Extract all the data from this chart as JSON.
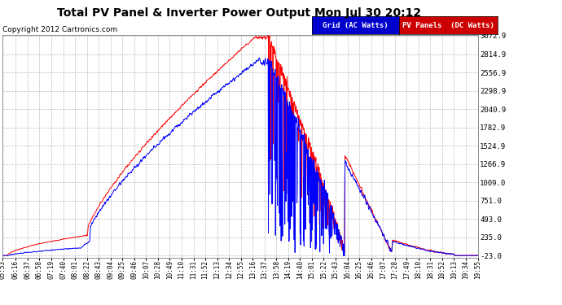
{
  "title": "Total PV Panel & Inverter Power Output Mon Jul 30 20:12",
  "copyright": "Copyright 2012 Cartronics.com",
  "background_color": "#ffffff",
  "plot_bg_color": "#ffffff",
  "grid_color": "#aaaaaa",
  "blue_label": "Grid (AC Watts)",
  "red_label": "PV Panels  (DC Watts)",
  "blue_color": "#0000ff",
  "red_color": "#ff0000",
  "blue_legend_bg": "#0000cc",
  "red_legend_bg": "#cc0000",
  "ylim": [
    -23.0,
    3072.9
  ],
  "yticks": [
    -23.0,
    235.0,
    493.0,
    751.0,
    1009.0,
    1266.9,
    1524.9,
    1782.9,
    2040.9,
    2298.9,
    2556.9,
    2814.9,
    3072.9
  ],
  "ytick_labels": [
    "-23.0",
    "235.0",
    "493.0",
    "751.0",
    "1009.0",
    "1266.9",
    "1524.9",
    "1782.9",
    "2040.9",
    "2298.9",
    "2556.9",
    "2814.9",
    "3072.9"
  ],
  "xtick_labels": [
    "05:53",
    "06:16",
    "06:37",
    "06:58",
    "07:19",
    "07:40",
    "08:01",
    "08:22",
    "08:43",
    "09:04",
    "09:25",
    "09:46",
    "10:07",
    "10:28",
    "10:49",
    "11:10",
    "11:31",
    "11:52",
    "12:13",
    "12:34",
    "12:55",
    "13:16",
    "13:37",
    "13:58",
    "14:19",
    "14:40",
    "15:01",
    "15:22",
    "15:43",
    "16:04",
    "16:25",
    "16:46",
    "17:07",
    "17:28",
    "17:49",
    "18:10",
    "18:31",
    "18:52",
    "19:13",
    "19:34",
    "19:55"
  ]
}
